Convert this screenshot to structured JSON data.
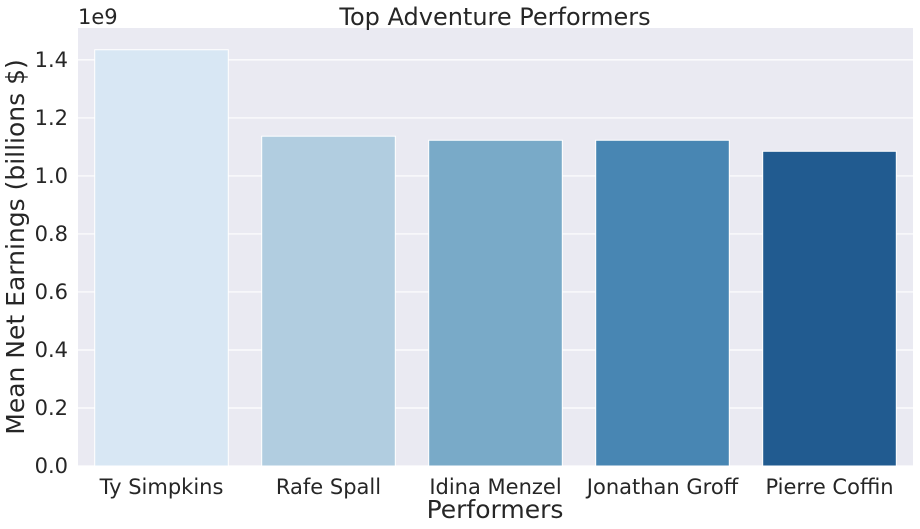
{
  "chart_data": {
    "type": "bar",
    "title": "Top Adventure Performers",
    "xlabel": "Performers",
    "ylabel": "Mean Net Earnings (billions $)",
    "offset_text": "1e9",
    "categories": [
      "Ty Simpkins",
      "Rafe Spall",
      "Idina Menzel",
      "Jonathan Groff",
      "Pierre Coffin"
    ],
    "values": [
      1435000000,
      1137000000,
      1123000000,
      1123000000,
      1085000000
    ],
    "ylim": [
      0,
      1510000000
    ],
    "yticks": [
      0,
      200000000,
      400000000,
      600000000,
      800000000,
      1000000000,
      1200000000,
      1400000000
    ],
    "ytick_labels": [
      "0.0",
      "0.2",
      "0.4",
      "0.6",
      "0.8",
      "1.0",
      "1.2",
      "1.4"
    ],
    "colors": [
      "#d8e7f4",
      "#b1cde0",
      "#79aac8",
      "#4886b3",
      "#215b90"
    ],
    "background": "#eaeaf2",
    "grid": true,
    "legend": "none"
  }
}
